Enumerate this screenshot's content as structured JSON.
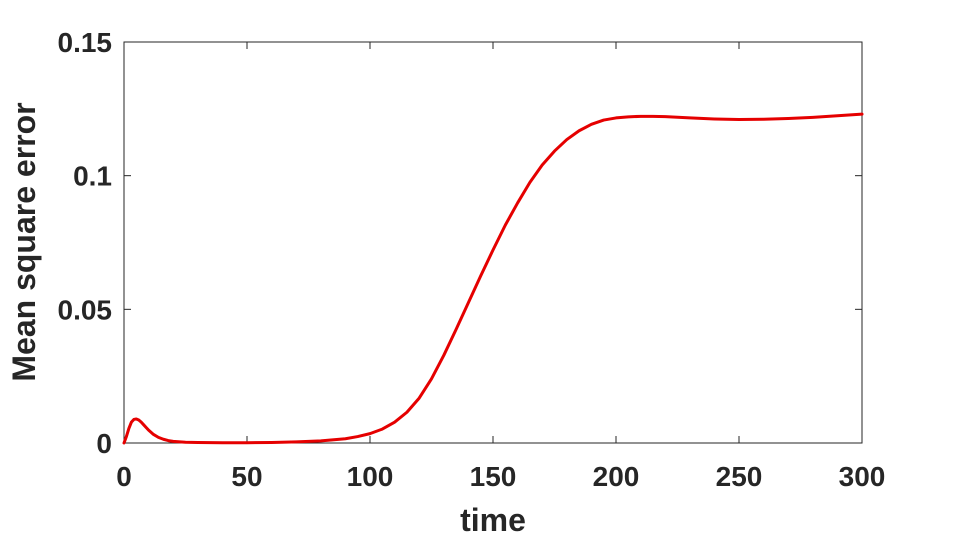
{
  "chart_data": {
    "type": "line",
    "title": "",
    "xlabel": "time",
    "ylabel": "Mean square error",
    "xlim": [
      0,
      300
    ],
    "ylim": [
      0,
      0.15
    ],
    "grid": false,
    "x_ticks": [
      0,
      50,
      100,
      150,
      200,
      250,
      300
    ],
    "x_tick_labels": [
      "0",
      "50",
      "100",
      "150",
      "200",
      "250",
      "300"
    ],
    "y_ticks": [
      0,
      0.05,
      0.1,
      0.15
    ],
    "y_tick_labels": [
      "0",
      "0.05",
      "0.1",
      "0.15"
    ],
    "series": [
      {
        "color": "#e50000",
        "x": [
          0,
          1,
          2,
          3,
          4,
          5,
          6,
          7,
          8,
          9,
          10,
          12,
          14,
          16,
          18,
          20,
          25,
          30,
          40,
          50,
          60,
          70,
          80,
          90,
          95,
          100,
          105,
          110,
          115,
          120,
          125,
          130,
          135,
          140,
          145,
          150,
          155,
          160,
          165,
          170,
          175,
          180,
          185,
          190,
          195,
          200,
          205,
          210,
          215,
          220,
          230,
          240,
          250,
          260,
          270,
          280,
          290,
          300
        ],
        "y": [
          0,
          0.0025,
          0.0055,
          0.0078,
          0.0088,
          0.009,
          0.0086,
          0.0078,
          0.0068,
          0.0058,
          0.0048,
          0.0032,
          0.0021,
          0.0014,
          0.0009,
          0.0006,
          0.0003,
          0.0002,
          0.0001,
          0.0001,
          0.0002,
          0.0004,
          0.0008,
          0.0016,
          0.0024,
          0.0035,
          0.0052,
          0.0078,
          0.0115,
          0.0168,
          0.024,
          0.0328,
          0.0425,
          0.0525,
          0.0625,
          0.0722,
          0.0815,
          0.0898,
          0.0975,
          0.104,
          0.1092,
          0.1135,
          0.1168,
          0.1192,
          0.1208,
          0.1216,
          0.122,
          0.1222,
          0.1222,
          0.1221,
          0.1216,
          0.1212,
          0.121,
          0.1211,
          0.1214,
          0.1218,
          0.1224,
          0.123
        ]
      }
    ]
  }
}
